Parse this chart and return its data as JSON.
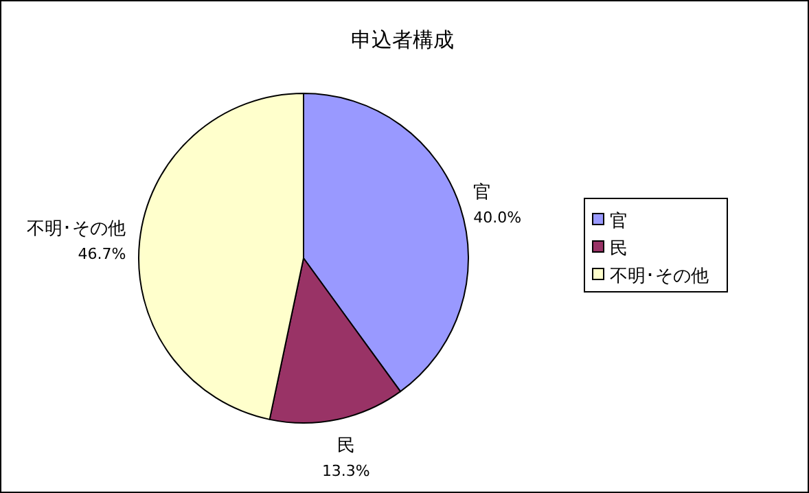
{
  "chart_data": {
    "type": "pie",
    "title": "申込者構成",
    "categories": [
      "官",
      "民",
      "不明･その他"
    ],
    "values": [
      40.0,
      13.3,
      46.7
    ],
    "value_labels": [
      "40.0%",
      "13.3%",
      "46.7%"
    ],
    "colors": [
      "#9999ff",
      "#993366",
      "#ffffcc"
    ],
    "legend": "right"
  }
}
